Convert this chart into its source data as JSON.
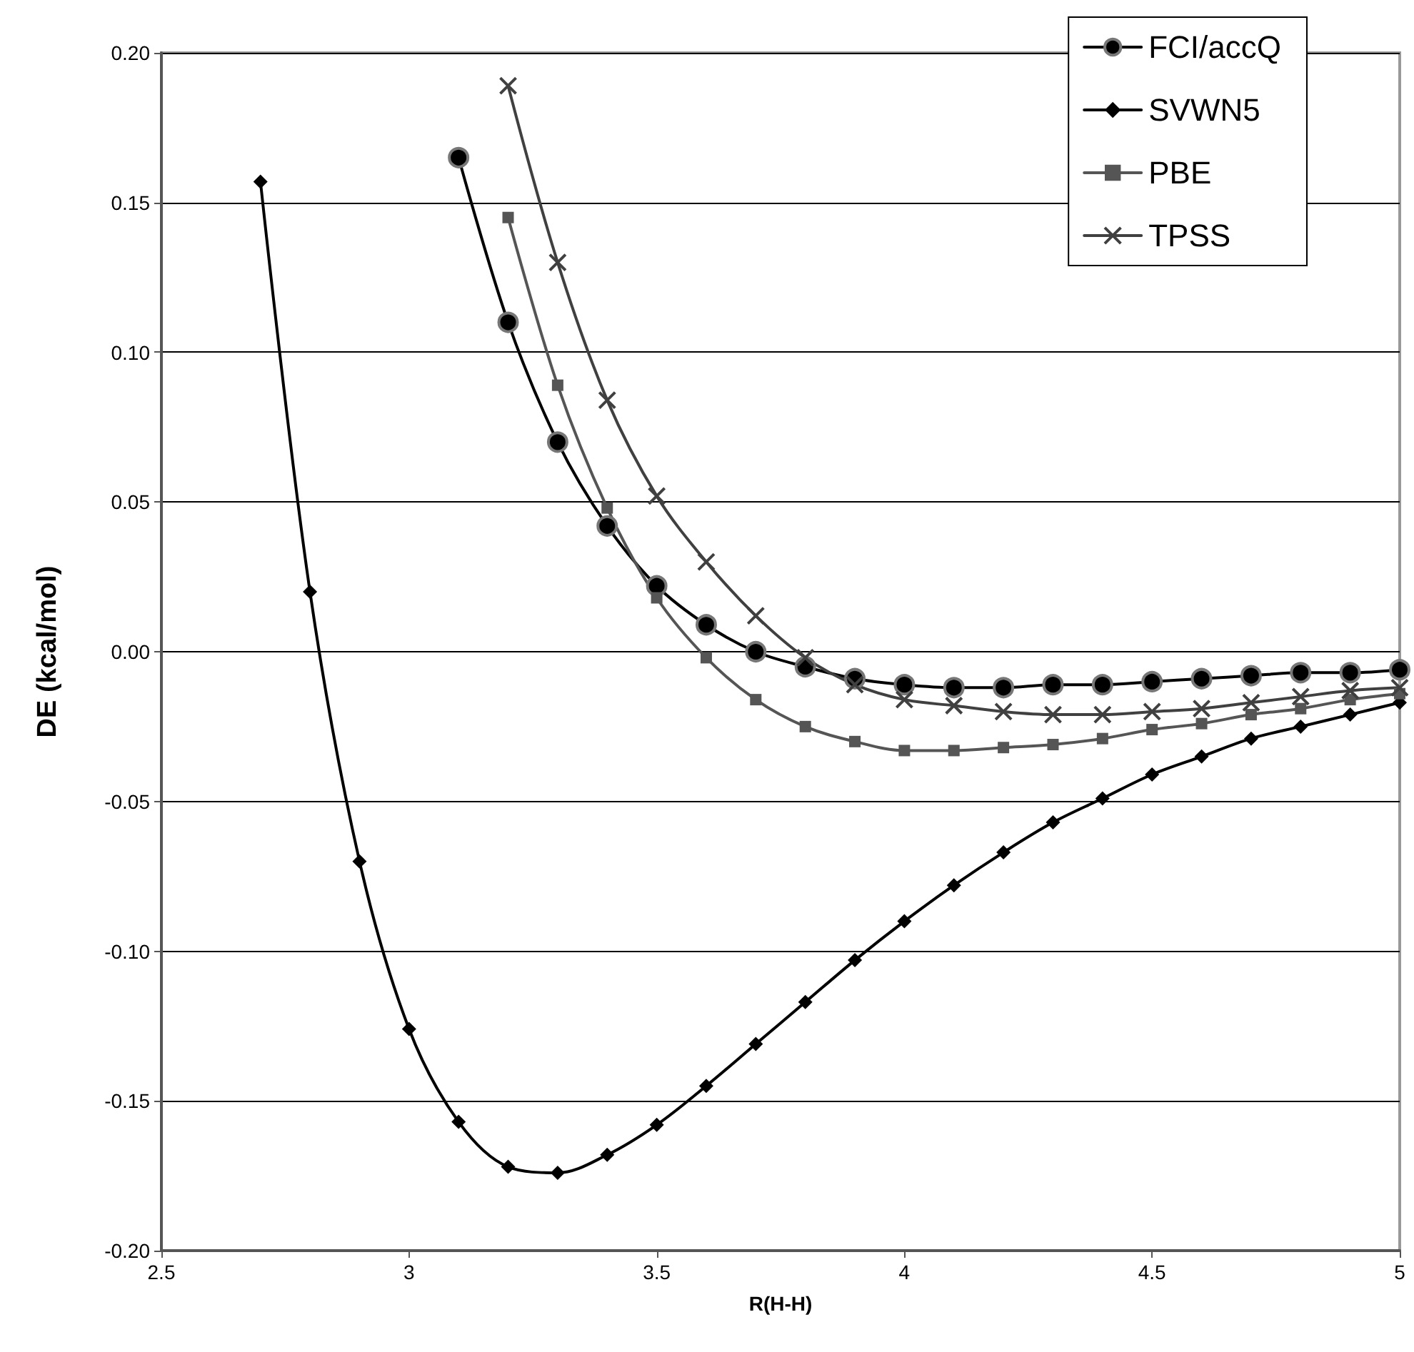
{
  "chart_data": {
    "type": "line",
    "xlabel": "R(H-H)",
    "ylabel": "DE (kcal/mol)",
    "xlim": [
      2.5,
      5
    ],
    "xticks": [
      2.5,
      3,
      3.5,
      4,
      4.5,
      5
    ],
    "ylim": [
      -0.2,
      0.2
    ],
    "yticks": [
      {
        "value": -0.2,
        "label": "-0.20"
      },
      {
        "value": -0.15,
        "label": "-0.15"
      },
      {
        "value": -0.1,
        "label": "-0.10"
      },
      {
        "value": -0.05,
        "label": "-0.05"
      },
      {
        "value": 0,
        "label": "0.00"
      },
      {
        "value": 0.05,
        "label": "0.05"
      },
      {
        "value": 0.1,
        "label": "0.10"
      },
      {
        "value": 0.15,
        "label": "0.15"
      },
      {
        "value": 0.2,
        "label": "0.20"
      }
    ],
    "grid": "y",
    "legend": "top right",
    "line_style": "solid",
    "series": [
      {
        "name": "FCI/accQ",
        "color": "#000000",
        "marker": "circle",
        "x": [
          3.1,
          3.2,
          3.3,
          3.4,
          3.5,
          3.6,
          3.7,
          3.8,
          3.9,
          4.0,
          4.1,
          4.2,
          4.3,
          4.4,
          4.5,
          4.6,
          4.7,
          4.8,
          4.9,
          5.0
        ],
        "values": [
          0.165,
          0.11,
          0.07,
          0.042,
          0.022,
          0.009,
          0.0,
          -0.005,
          -0.009,
          -0.011,
          -0.012,
          -0.012,
          -0.011,
          -0.011,
          -0.01,
          -0.009,
          -0.008,
          -0.007,
          -0.007,
          -0.006
        ]
      },
      {
        "name": "SVWN5",
        "color": "#000000",
        "marker": "diamond",
        "x": [
          2.7,
          2.8,
          2.9,
          3.0,
          3.1,
          3.2,
          3.3,
          3.4,
          3.5,
          3.6,
          3.7,
          3.8,
          3.9,
          4.0,
          4.1,
          4.2,
          4.3,
          4.4,
          4.5,
          4.6,
          4.7,
          4.8,
          4.9,
          5.0
        ],
        "values": [
          0.157,
          0.02,
          -0.07,
          -0.126,
          -0.157,
          -0.172,
          -0.174,
          -0.168,
          -0.158,
          -0.145,
          -0.131,
          -0.117,
          -0.103,
          -0.09,
          -0.078,
          -0.067,
          -0.057,
          -0.049,
          -0.041,
          -0.035,
          -0.029,
          -0.025,
          -0.021,
          -0.017
        ]
      },
      {
        "name": "PBE",
        "color": "#555555",
        "marker": "square",
        "x": [
          3.2,
          3.3,
          3.4,
          3.5,
          3.6,
          3.7,
          3.8,
          3.9,
          4.0,
          4.1,
          4.2,
          4.3,
          4.4,
          4.5,
          4.6,
          4.7,
          4.8,
          4.9,
          5.0
        ],
        "values": [
          0.145,
          0.089,
          0.048,
          0.018,
          -0.002,
          -0.016,
          -0.025,
          -0.03,
          -0.033,
          -0.033,
          -0.032,
          -0.031,
          -0.029,
          -0.026,
          -0.024,
          -0.021,
          -0.019,
          -0.016,
          -0.014
        ]
      },
      {
        "name": "TPSS",
        "color": "#404040",
        "marker": "cross",
        "x": [
          3.2,
          3.3,
          3.4,
          3.5,
          3.6,
          3.7,
          3.8,
          3.9,
          4.0,
          4.1,
          4.2,
          4.3,
          4.4,
          4.5,
          4.6,
          4.7,
          4.8,
          4.9,
          5.0
        ],
        "values": [
          0.189,
          0.13,
          0.084,
          0.052,
          0.03,
          0.012,
          -0.002,
          -0.011,
          -0.016,
          -0.018,
          -0.02,
          -0.021,
          -0.021,
          -0.02,
          -0.019,
          -0.017,
          -0.015,
          -0.013,
          -0.012
        ]
      }
    ]
  }
}
